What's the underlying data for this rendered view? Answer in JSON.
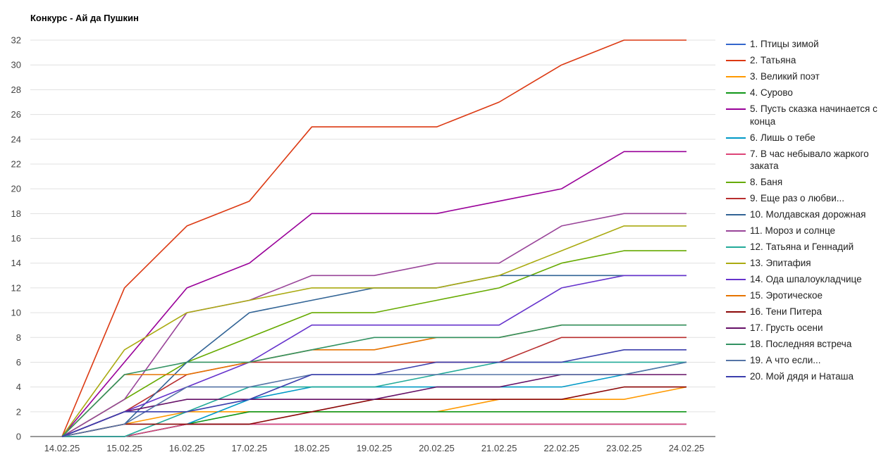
{
  "chart_data": {
    "type": "line",
    "title": "Конкурс - Ай да Пушкин",
    "xlabel": "",
    "ylabel": "",
    "x": [
      "14.02.25",
      "15.02.25",
      "16.02.25",
      "17.02.25",
      "18.02.25",
      "19.02.25",
      "20.02.25",
      "21.02.25",
      "22.02.25",
      "23.02.25",
      "24.02.25"
    ],
    "ylim": [
      0,
      32
    ],
    "yticks": [
      0,
      2,
      4,
      6,
      8,
      10,
      12,
      14,
      16,
      18,
      20,
      22,
      24,
      26,
      28,
      30,
      32
    ],
    "grid": true,
    "legend_position": "right",
    "series": [
      {
        "name": "1. Птицы зимой",
        "color": "#3366cc",
        "values": [
          0,
          0,
          1,
          1,
          1,
          1,
          1,
          1,
          1,
          1,
          1
        ]
      },
      {
        "name": "2. Татьяна",
        "color": "#dc3912",
        "values": [
          0,
          12,
          17,
          19,
          25,
          25,
          25,
          27,
          30,
          32,
          32
        ]
      },
      {
        "name": "3. Великий поэт",
        "color": "#ff9900",
        "values": [
          0,
          1,
          2,
          2,
          2,
          2,
          2,
          3,
          3,
          3,
          4
        ]
      },
      {
        "name": "4. Сурово",
        "color": "#109618",
        "values": [
          0,
          0,
          1,
          2,
          2,
          2,
          2,
          2,
          2,
          2,
          2
        ]
      },
      {
        "name": "5. Пусть сказка начинается с конца",
        "color": "#990099",
        "values": [
          0,
          6,
          12,
          14,
          18,
          18,
          18,
          19,
          20,
          23,
          23
        ]
      },
      {
        "name": "6. Лишь о тебе",
        "color": "#0099c6",
        "values": [
          0,
          0,
          1,
          3,
          4,
          4,
          4,
          4,
          4,
          5,
          6
        ]
      },
      {
        "name": "7. В час небывало жаркого заката",
        "color": "#dd4477",
        "values": [
          0,
          0,
          1,
          1,
          1,
          1,
          1,
          1,
          1,
          1,
          1
        ]
      },
      {
        "name": "8. Баня",
        "color": "#66aa00",
        "values": [
          0,
          3,
          6,
          8,
          10,
          10,
          11,
          12,
          14,
          15,
          15
        ]
      },
      {
        "name": "9. Еще раз о любви...",
        "color": "#b82e2e",
        "values": [
          0,
          2,
          5,
          6,
          6,
          6,
          6,
          6,
          8,
          8,
          8
        ]
      },
      {
        "name": "10. Молдавская дорожная",
        "color": "#316395",
        "values": [
          0,
          1,
          6,
          10,
          11,
          12,
          12,
          13,
          13,
          13,
          13
        ]
      },
      {
        "name": "11. Мороз и солнце",
        "color": "#994499",
        "values": [
          0,
          3,
          10,
          11,
          13,
          13,
          14,
          14,
          17,
          18,
          18
        ]
      },
      {
        "name": "12. Татьяна и Геннадий",
        "color": "#22aa99",
        "values": [
          0,
          0,
          2,
          4,
          4,
          4,
          5,
          6,
          6,
          6,
          6
        ]
      },
      {
        "name": "13. Эпитафия",
        "color": "#aaaa11",
        "values": [
          0,
          7,
          10,
          11,
          12,
          12,
          12,
          13,
          15,
          17,
          17
        ]
      },
      {
        "name": "14. Ода шпалоукладчице",
        "color": "#6633cc",
        "values": [
          0,
          2,
          4,
          6,
          9,
          9,
          9,
          9,
          12,
          13,
          13
        ]
      },
      {
        "name": "15. Эротическое",
        "color": "#e67300",
        "values": [
          0,
          5,
          5,
          6,
          7,
          7,
          8,
          8,
          9,
          9,
          9
        ]
      },
      {
        "name": "16. Тени Питера",
        "color": "#8b0707",
        "values": [
          0,
          1,
          1,
          1,
          2,
          3,
          3,
          3,
          3,
          4,
          4
        ]
      },
      {
        "name": "17. Грусть осени",
        "color": "#651067",
        "values": [
          0,
          2,
          3,
          3,
          3,
          3,
          4,
          4,
          5,
          5,
          5
        ]
      },
      {
        "name": "18. Последняя встреча",
        "color": "#329262",
        "values": [
          0,
          5,
          6,
          6,
          7,
          8,
          8,
          8,
          9,
          9,
          9
        ]
      },
      {
        "name": "19. А что если...",
        "color": "#5574a6",
        "values": [
          0,
          1,
          4,
          4,
          5,
          5,
          5,
          5,
          5,
          5,
          6
        ]
      },
      {
        "name": "20. Мой дядя и Наташа",
        "color": "#3b3eac",
        "values": [
          0,
          2,
          2,
          3,
          5,
          5,
          6,
          6,
          6,
          7,
          7
        ]
      }
    ]
  }
}
